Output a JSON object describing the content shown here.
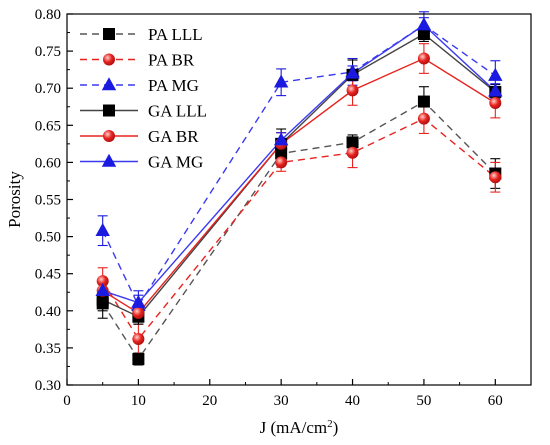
{
  "chart_data": {
    "type": "line",
    "title": "",
    "xlabel": "J (mA/cm",
    "xlabel_sup": "2",
    "xlabel_end": ")",
    "ylabel": "Porosity",
    "xlim": [
      0,
      65
    ],
    "ylim": [
      0.3,
      0.8
    ],
    "x_ticks": [
      0,
      10,
      20,
      30,
      40,
      50,
      60
    ],
    "y_ticks": [
      0.3,
      0.35,
      0.4,
      0.45,
      0.5,
      0.55,
      0.6,
      0.65,
      0.7,
      0.75,
      0.8
    ],
    "x_tick_labels": [
      "0",
      "10",
      "20",
      "30",
      "40",
      "50",
      "60"
    ],
    "y_tick_labels": [
      "0.30",
      "0.35",
      "0.40",
      "0.45",
      "0.50",
      "0.55",
      "0.60",
      "0.65",
      "0.70",
      "0.75",
      "0.80"
    ],
    "grid": false,
    "legend_position": "top-left",
    "x": [
      5,
      10,
      30,
      40,
      50,
      60
    ],
    "series": [
      {
        "name": "PA LLL",
        "values": [
          0.41,
          0.335,
          0.612,
          0.627,
          0.682,
          0.585
        ],
        "errors": [
          0.02,
          0.008,
          0.012,
          0.01,
          0.02,
          0.02
        ],
        "color": "#000000",
        "marker": "square",
        "line": "dashed",
        "line_color": "#555555"
      },
      {
        "name": "PA BR",
        "values": [
          0.44,
          0.362,
          0.6,
          0.613,
          0.659,
          0.58
        ],
        "errors": [
          0.018,
          0.02,
          0.012,
          0.02,
          0.02,
          0.02
        ],
        "color": "#e8231f",
        "marker": "circle",
        "line": "dashed",
        "line_color": "#e8231f"
      },
      {
        "name": "PA MG",
        "values": [
          0.508,
          0.407,
          0.708,
          0.722,
          0.785,
          0.717
        ],
        "errors": [
          0.02,
          0.02,
          0.018,
          0.018,
          0.018,
          0.02
        ],
        "color": "#1a1ae0",
        "marker": "triangle",
        "line": "dashed",
        "line_color": "#3a3af0"
      },
      {
        "name": "GA LLL",
        "values": [
          0.415,
          0.392,
          0.625,
          0.718,
          0.773,
          0.695
        ],
        "errors": [
          0.015,
          0.01,
          0.02,
          0.02,
          0.01,
          0.01
        ],
        "color": "#000000",
        "marker": "square",
        "line": "solid",
        "line_color": "#444444"
      },
      {
        "name": "GA BR",
        "values": [
          0.427,
          0.397,
          0.625,
          0.697,
          0.74,
          0.68
        ],
        "errors": [
          0.012,
          0.01,
          0.015,
          0.02,
          0.02,
          0.02
        ],
        "color": "#e8231f",
        "marker": "circle",
        "line": "solid",
        "line_color": "#e8231f"
      },
      {
        "name": "GA MG",
        "values": [
          0.427,
          0.411,
          0.63,
          0.72,
          0.785,
          0.696
        ],
        "errors": [
          0.01,
          0.01,
          0.01,
          0.01,
          0.01,
          0.01
        ],
        "color": "#1a1ae0",
        "marker": "triangle",
        "line": "solid",
        "line_color": "#3a3af0"
      }
    ]
  }
}
